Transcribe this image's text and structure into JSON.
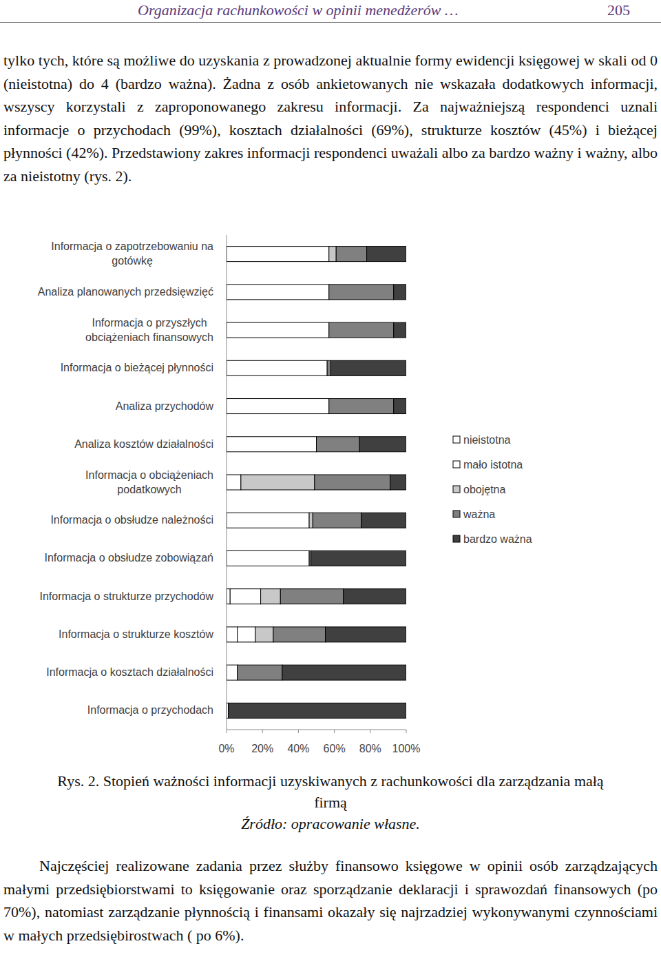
{
  "header": {
    "title": "Organizacja rachunkowości w opinii menedżerów …",
    "page": "205"
  },
  "paragraphs": [
    "tylko tych, które są możliwe do uzyskania z prowadzonej aktualnie formy ewidencji księgowej w skali od 0 (nieistotna) do 4 (bardzo ważna). Żadna z osób ankietowanych nie wskazała dodatkowych informacji, wszyscy korzystali z zaproponowanego zakresu informacji. Za najważniejszą respondenci uznali informacje o przychodach (99%), kosztach działalności (69%), strukturze kosztów (45%) i bieżącej płynności (42%). Przedstawiony zakres informacji respondenci uważali albo za bardzo ważny i ważny, albo za nieistotny (rys. 2).",
    "Najczęściej realizowane zadania przez służby finansowo księgowe w opinii osób zarządzających małymi przedsiębiorstwami to księgowanie oraz sporządzanie deklaracji i sprawozdań finansowych (po 70%), natomiast zarządzanie płynnością i finansami okazały się najrzadziej wykonywanymi czynnościami w małych przedsiębirostwach ( po 6%)."
  ],
  "caption": {
    "label": "Rys. 2.",
    "text": "Stopień ważności informacji uzyskiwanych z rachunkowości dla zarządzania małą firmą",
    "source": "Źródło: opracowanie własne."
  },
  "chart_data": {
    "type": "bar",
    "orientation": "horizontal",
    "stacked": true,
    "legend": "right",
    "categories": [
      "Informacja o zapotrzebowaniu na gotówkę",
      "Analiza planowanych przedsięwzięć",
      "Informacja o przyszłych obciążeniach finansowych",
      "Informacja o bieżącej płynności",
      "Analiza przychodów",
      "Analiza kosztów działalności",
      "Informacja o obciążeniach podatkowych",
      "Informacja o obsłudze należności",
      "Informacja o obsłudze zobowiązań",
      "Informacja o strukturze przychodów",
      "Informacja o strukturze kosztów",
      "Informacja o kosztach działalności",
      "Informacja o przychodach"
    ],
    "series": [
      {
        "name": "nieistotna",
        "color": "#ffffff",
        "values": [
          57,
          57,
          57,
          56,
          57,
          50,
          0,
          46,
          46,
          2,
          6,
          0,
          1
        ]
      },
      {
        "name": "mało istotna",
        "color": "#ffffff",
        "values": [
          0,
          0,
          0,
          0,
          0,
          0,
          8,
          0,
          0,
          17,
          10,
          6,
          0
        ]
      },
      {
        "name": "obojętna",
        "color": "#c8c8c8",
        "values": [
          4,
          0,
          0,
          0,
          0,
          0,
          41,
          2,
          0,
          11,
          10,
          0,
          0
        ]
      },
      {
        "name": "ważna",
        "color": "#808080",
        "values": [
          17,
          36,
          36,
          2,
          36,
          24,
          42,
          27,
          1,
          35,
          29,
          25,
          0
        ]
      },
      {
        "name": "bardzo ważna",
        "color": "#404040",
        "values": [
          22,
          7,
          7,
          42,
          7,
          26,
          9,
          25,
          53,
          35,
          45,
          69,
          99
        ]
      }
    ],
    "xlim": [
      0,
      100
    ],
    "xticks": [
      {
        "value": 0,
        "label": "0%"
      },
      {
        "value": 20,
        "label": "20%"
      },
      {
        "value": 40,
        "label": "40%"
      },
      {
        "value": 60,
        "label": "60%"
      },
      {
        "value": 80,
        "label": "80%"
      },
      {
        "value": 100,
        "label": "100%"
      }
    ]
  }
}
